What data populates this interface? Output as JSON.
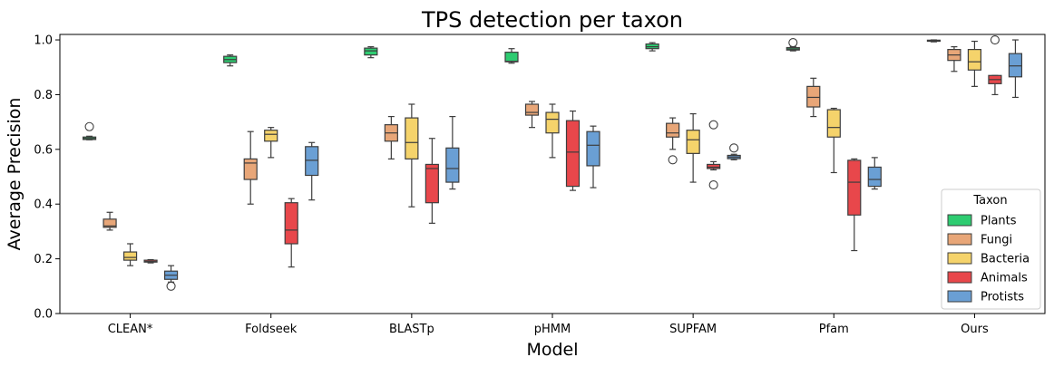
{
  "chart_data": {
    "type": "box",
    "title": "TPS detection per taxon",
    "xlabel": "Model",
    "ylabel": "Average Precision",
    "ylim": [
      0.0,
      1.02
    ],
    "yticks": [
      "0.0",
      "0.2",
      "0.4",
      "0.6",
      "0.8",
      "1.0"
    ],
    "categories": [
      "CLEAN*",
      "Foldseek",
      "BLASTp",
      "pHMM",
      "SUPFAM",
      "Pfam",
      "Ours"
    ],
    "legend": {
      "title": "Taxon",
      "placement": "lower right"
    },
    "series": [
      {
        "name": "Plants",
        "color": "#2ecc71",
        "boxes": [
          {
            "whislo": 0.635,
            "q1": 0.636,
            "med": 0.64,
            "q3": 0.645,
            "whishi": 0.648,
            "fliers": [
              0.683
            ]
          },
          {
            "whislo": 0.905,
            "q1": 0.917,
            "med": 0.928,
            "q3": 0.94,
            "whishi": 0.945,
            "fliers": []
          },
          {
            "whislo": 0.935,
            "q1": 0.945,
            "med": 0.96,
            "q3": 0.97,
            "whishi": 0.975,
            "fliers": []
          },
          {
            "whislo": 0.915,
            "q1": 0.92,
            "med": 0.922,
            "q3": 0.955,
            "whishi": 0.968,
            "fliers": []
          },
          {
            "whislo": 0.96,
            "q1": 0.968,
            "med": 0.975,
            "q3": 0.985,
            "whishi": 0.99,
            "fliers": []
          },
          {
            "whislo": 0.96,
            "q1": 0.963,
            "med": 0.967,
            "q3": 0.972,
            "whishi": 0.975,
            "fliers": [
              0.99
            ]
          },
          {
            "whislo": 0.993,
            "q1": 0.995,
            "med": 0.997,
            "q3": 0.999,
            "whishi": 1.0,
            "fliers": []
          }
        ]
      },
      {
        "name": "Fungi",
        "color": "#e8a678",
        "boxes": [
          {
            "whislo": 0.305,
            "q1": 0.315,
            "med": 0.32,
            "q3": 0.345,
            "whishi": 0.37,
            "fliers": []
          },
          {
            "whislo": 0.4,
            "q1": 0.49,
            "med": 0.55,
            "q3": 0.565,
            "whishi": 0.665,
            "fliers": []
          },
          {
            "whislo": 0.565,
            "q1": 0.63,
            "med": 0.66,
            "q3": 0.69,
            "whishi": 0.72,
            "fliers": []
          },
          {
            "whislo": 0.68,
            "q1": 0.725,
            "med": 0.735,
            "q3": 0.765,
            "whishi": 0.775,
            "fliers": []
          },
          {
            "whislo": 0.6,
            "q1": 0.645,
            "med": 0.66,
            "q3": 0.695,
            "whishi": 0.715,
            "fliers": [
              0.562
            ]
          },
          {
            "whislo": 0.72,
            "q1": 0.755,
            "med": 0.79,
            "q3": 0.83,
            "whishi": 0.86,
            "fliers": []
          },
          {
            "whislo": 0.885,
            "q1": 0.925,
            "med": 0.945,
            "q3": 0.965,
            "whishi": 0.975,
            "fliers": []
          }
        ]
      },
      {
        "name": "Bacteria",
        "color": "#f5d36b",
        "boxes": [
          {
            "whislo": 0.175,
            "q1": 0.195,
            "med": 0.205,
            "q3": 0.225,
            "whishi": 0.255,
            "fliers": []
          },
          {
            "whislo": 0.57,
            "q1": 0.63,
            "med": 0.655,
            "q3": 0.67,
            "whishi": 0.68,
            "fliers": []
          },
          {
            "whislo": 0.39,
            "q1": 0.565,
            "med": 0.625,
            "q3": 0.715,
            "whishi": 0.765,
            "fliers": []
          },
          {
            "whislo": 0.57,
            "q1": 0.66,
            "med": 0.71,
            "q3": 0.735,
            "whishi": 0.765,
            "fliers": []
          },
          {
            "whislo": 0.48,
            "q1": 0.585,
            "med": 0.635,
            "q3": 0.67,
            "whishi": 0.73,
            "fliers": []
          },
          {
            "whislo": 0.515,
            "q1": 0.645,
            "med": 0.68,
            "q3": 0.745,
            "whishi": 0.75,
            "fliers": []
          },
          {
            "whislo": 0.83,
            "q1": 0.89,
            "med": 0.92,
            "q3": 0.965,
            "whishi": 0.995,
            "fliers": []
          }
        ]
      },
      {
        "name": "Animals",
        "color": "#e8474b",
        "boxes": [
          {
            "whislo": 0.185,
            "q1": 0.188,
            "med": 0.19,
            "q3": 0.195,
            "whishi": 0.197,
            "fliers": []
          },
          {
            "whislo": 0.17,
            "q1": 0.255,
            "med": 0.305,
            "q3": 0.405,
            "whishi": 0.42,
            "fliers": []
          },
          {
            "whislo": 0.33,
            "q1": 0.405,
            "med": 0.53,
            "q3": 0.545,
            "whishi": 0.64,
            "fliers": []
          },
          {
            "whislo": 0.45,
            "q1": 0.465,
            "med": 0.59,
            "q3": 0.705,
            "whishi": 0.74,
            "fliers": []
          },
          {
            "whislo": 0.525,
            "q1": 0.53,
            "med": 0.535,
            "q3": 0.545,
            "whishi": 0.555,
            "fliers": [
              0.69,
              0.47
            ]
          },
          {
            "whislo": 0.23,
            "q1": 0.36,
            "med": 0.48,
            "q3": 0.56,
            "whishi": 0.565,
            "fliers": []
          },
          {
            "whislo": 0.8,
            "q1": 0.84,
            "med": 0.855,
            "q3": 0.87,
            "whishi": 0.87,
            "fliers": [
              1.0
            ]
          }
        ]
      },
      {
        "name": "Protists",
        "color": "#6a9fd4",
        "boxes": [
          {
            "whislo": 0.115,
            "q1": 0.125,
            "med": 0.14,
            "q3": 0.155,
            "whishi": 0.175,
            "fliers": [
              0.1
            ]
          },
          {
            "whislo": 0.415,
            "q1": 0.505,
            "med": 0.56,
            "q3": 0.61,
            "whishi": 0.625,
            "fliers": []
          },
          {
            "whislo": 0.455,
            "q1": 0.48,
            "med": 0.53,
            "q3": 0.605,
            "whishi": 0.72,
            "fliers": []
          },
          {
            "whislo": 0.46,
            "q1": 0.54,
            "med": 0.615,
            "q3": 0.665,
            "whishi": 0.685,
            "fliers": []
          },
          {
            "whislo": 0.562,
            "q1": 0.566,
            "med": 0.572,
            "q3": 0.578,
            "whishi": 0.582,
            "fliers": [
              0.605
            ]
          },
          {
            "whislo": 0.455,
            "q1": 0.465,
            "med": 0.49,
            "q3": 0.535,
            "whishi": 0.57,
            "fliers": []
          },
          {
            "whislo": 0.79,
            "q1": 0.865,
            "med": 0.905,
            "q3": 0.95,
            "whishi": 1.0,
            "fliers": []
          }
        ]
      }
    ]
  }
}
